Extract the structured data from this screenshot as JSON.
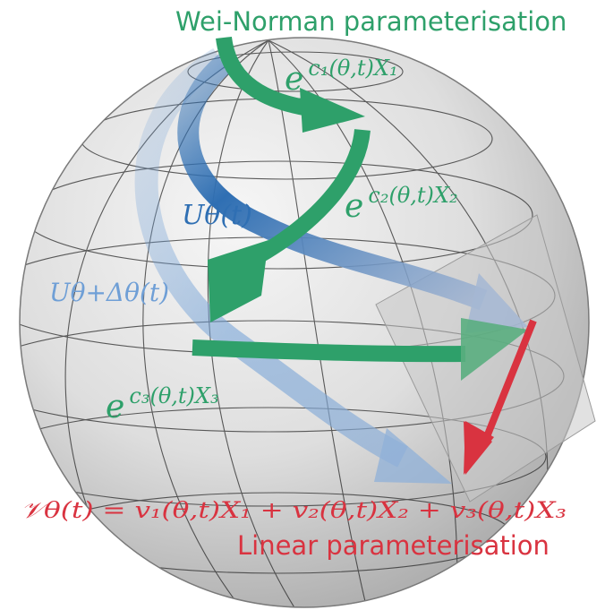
{
  "colors": {
    "wei_norman": "#2ea06a",
    "linear": "#d93340",
    "u_theta": "#2f6fb3",
    "u_theta_delta": "#6f9fd6",
    "sphere_base": "#dcdcdc",
    "tangent_plane": "#c8c8c8"
  },
  "labels": {
    "wei_norman_title": "Wei-Norman parameterisation",
    "linear_title": "Linear parameterisation",
    "exp1_base": "e",
    "exp1_sup": "c₁(θ,t)X₁",
    "exp2_base": "e",
    "exp2_sup": "c₂(θ,t)X₂",
    "exp3_base": "e",
    "exp3_sup": "c₃(θ,t)X₃",
    "u_theta": "Uθ(t)",
    "u_theta_delta": "Uθ+Δθ(t)",
    "v_theta": "𝒱θ(t) = v₁(θ,t)X₁ + v₂(θ,t)X₂ + v₃(θ,t)X₃"
  }
}
